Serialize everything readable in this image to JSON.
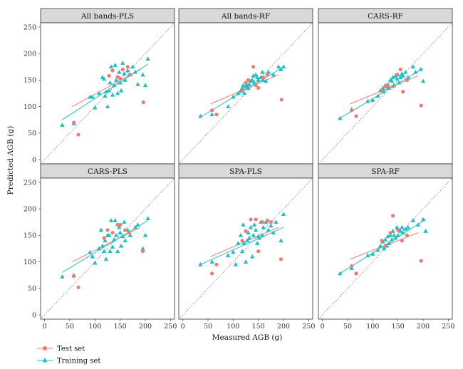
{
  "xlabel": "Measured AGB (g)",
  "ylabel": "Predicted AGB (g)",
  "axis_ticks": [
    "0",
    "50",
    "100",
    "150",
    "200",
    "250"
  ],
  "legend": {
    "test_label": "Test set",
    "train_label": "Training set"
  },
  "colors": {
    "test": "#f07a72",
    "train": "#1fbfc4",
    "strip_bg": "#d9d9d9",
    "panel_border": "#333333",
    "identity_line": "#666666"
  },
  "chart_data": [
    {
      "type": "scatter",
      "title": "All bands-PLS",
      "xlim": [
        -8,
        258
      ],
      "ylim": [
        -8,
        258
      ],
      "identity_line": true,
      "series": [
        {
          "name": "Test set",
          "x": [
            58,
            67,
            128,
            135,
            145,
            150,
            155,
            165,
            170,
            196
          ],
          "y": [
            70,
            47,
            158,
            168,
            156,
            153,
            170,
            175,
            160,
            108
          ],
          "fit": [
            [
              55,
              100
            ],
            [
              190,
              170
            ]
          ]
        },
        {
          "name": "Training set",
          "x": [
            35,
            58,
            90,
            95,
            100,
            108,
            115,
            118,
            120,
            122,
            125,
            128,
            130,
            132,
            135,
            138,
            140,
            142,
            145,
            148,
            150,
            152,
            155,
            158,
            160,
            165,
            168,
            175,
            180,
            185,
            195,
            200,
            205
          ],
          "y": [
            65,
            68,
            118,
            118,
            98,
            125,
            155,
            152,
            120,
            128,
            100,
            130,
            145,
            175,
            122,
            140,
            178,
            150,
            125,
            165,
            145,
            130,
            182,
            162,
            150,
            168,
            160,
            175,
            165,
            142,
            160,
            140,
            190
          ],
          "fit": [
            [
              35,
              75
            ],
            [
              205,
              180
            ]
          ]
        }
      ]
    },
    {
      "type": "scatter",
      "title": "All bands-RF",
      "xlim": [
        -8,
        258
      ],
      "ylim": [
        -8,
        258
      ],
      "identity_line": true,
      "series": [
        {
          "name": "Test set",
          "x": [
            58,
            67,
            118,
            125,
            130,
            140,
            145,
            150,
            160,
            168,
            196
          ],
          "y": [
            93,
            85,
            130,
            145,
            150,
            175,
            140,
            135,
            155,
            160,
            113
          ],
          "fit": [
            [
              55,
              105
            ],
            [
              190,
              160
            ]
          ]
        },
        {
          "name": "Training set",
          "x": [
            35,
            58,
            90,
            100,
            110,
            115,
            118,
            120,
            122,
            125,
            128,
            130,
            132,
            135,
            138,
            140,
            142,
            145,
            148,
            150,
            155,
            158,
            160,
            165,
            170,
            180,
            190,
            195,
            200
          ],
          "y": [
            82,
            85,
            100,
            118,
            125,
            130,
            135,
            140,
            125,
            138,
            140,
            135,
            142,
            148,
            150,
            158,
            145,
            160,
            155,
            150,
            155,
            165,
            150,
            148,
            165,
            160,
            175,
            170,
            175
          ],
          "fit": [
            [
              35,
              80
            ],
            [
              200,
              175
            ]
          ]
        }
      ]
    },
    {
      "type": "scatter",
      "title": "CARS-RF",
      "xlim": [
        -8,
        258
      ],
      "ylim": [
        -8,
        258
      ],
      "identity_line": true,
      "series": [
        {
          "name": "Test set",
          "x": [
            58,
            67,
            118,
            125,
            130,
            140,
            148,
            155,
            160,
            168,
            196
          ],
          "y": [
            93,
            82,
            130,
            138,
            140,
            138,
            160,
            170,
            128,
            150,
            102
          ],
          "fit": [
            [
              55,
              105
            ],
            [
              190,
              158
            ]
          ]
        },
        {
          "name": "Training set",
          "x": [
            35,
            58,
            90,
            100,
            110,
            115,
            120,
            122,
            125,
            128,
            130,
            132,
            135,
            138,
            140,
            142,
            145,
            148,
            150,
            152,
            155,
            158,
            160,
            165,
            170,
            180,
            185,
            195,
            200
          ],
          "y": [
            78,
            95,
            110,
            112,
            120,
            130,
            135,
            128,
            140,
            138,
            142,
            135,
            150,
            148,
            155,
            140,
            158,
            152,
            160,
            145,
            155,
            162,
            158,
            165,
            155,
            175,
            165,
            170,
            148
          ],
          "fit": [
            [
              35,
              78
            ],
            [
              200,
              172
            ]
          ]
        }
      ]
    },
    {
      "type": "scatter",
      "title": "CARS-PLS",
      "xlim": [
        -8,
        258
      ],
      "ylim": [
        -8,
        258
      ],
      "identity_line": true,
      "series": [
        {
          "name": "Test set",
          "x": [
            58,
            67,
            118,
            125,
            135,
            145,
            150,
            160,
            168,
            195
          ],
          "y": [
            73,
            52,
            145,
            160,
            155,
            170,
            170,
            160,
            155,
            120
          ],
          "fit": [
            [
              55,
              100
            ],
            [
              190,
              165
            ]
          ]
        },
        {
          "name": "Training set",
          "x": [
            35,
            58,
            90,
            95,
            100,
            108,
            112,
            115,
            118,
            120,
            122,
            125,
            128,
            130,
            132,
            135,
            138,
            140,
            142,
            145,
            148,
            150,
            152,
            155,
            158,
            160,
            165,
            170,
            180,
            185,
            195,
            200,
            205
          ],
          "y": [
            72,
            75,
            118,
            110,
            98,
            125,
            160,
            130,
            120,
            140,
            105,
            150,
            150,
            120,
            178,
            128,
            142,
            178,
            150,
            120,
            165,
            155,
            130,
            148,
            175,
            140,
            160,
            150,
            165,
            170,
            125,
            150,
            182
          ],
          "fit": [
            [
              35,
              80
            ],
            [
              205,
              178
            ]
          ]
        }
      ]
    },
    {
      "type": "scatter",
      "title": "SPA-PLS",
      "xlim": [
        -8,
        258
      ],
      "ylim": [
        -8,
        258
      ],
      "identity_line": true,
      "series": [
        {
          "name": "Test set",
          "x": [
            58,
            67,
            118,
            125,
            135,
            145,
            150,
            158,
            168,
            175,
            195
          ],
          "y": [
            78,
            95,
            140,
            158,
            180,
            180,
            120,
            175,
            178,
            175,
            105
          ],
          "fit": [
            [
              55,
              110
            ],
            [
              190,
              165
            ]
          ]
        },
        {
          "name": "Training set",
          "x": [
            35,
            58,
            90,
            100,
            105,
            110,
            115,
            118,
            120,
            122,
            125,
            128,
            130,
            132,
            135,
            138,
            140,
            142,
            145,
            148,
            150,
            152,
            155,
            158,
            160,
            165,
            170,
            175,
            180,
            185,
            195,
            200
          ],
          "y": [
            95,
            100,
            112,
            118,
            95,
            135,
            150,
            120,
            170,
            135,
            100,
            140,
            155,
            145,
            165,
            110,
            150,
            170,
            160,
            135,
            148,
            145,
            175,
            150,
            165,
            175,
            160,
            168,
            155,
            175,
            140,
            190
          ],
          "fit": [
            [
              35,
              95
            ],
            [
              200,
              165
            ]
          ]
        }
      ]
    },
    {
      "type": "scatter",
      "title": "SPA-RF",
      "xlim": [
        -8,
        258
      ],
      "ylim": [
        -8,
        258
      ],
      "identity_line": true,
      "series": [
        {
          "name": "Test set",
          "x": [
            58,
            67,
            118,
            125,
            135,
            140,
            150,
            158,
            168,
            196
          ],
          "y": [
            92,
            78,
            140,
            130,
            155,
            187,
            160,
            140,
            150,
            102
          ],
          "fit": [
            [
              55,
              105
            ],
            [
              190,
              155
            ]
          ]
        },
        {
          "name": "Training set",
          "x": [
            35,
            58,
            90,
            100,
            110,
            115,
            120,
            122,
            125,
            128,
            130,
            132,
            135,
            138,
            140,
            142,
            145,
            148,
            150,
            152,
            155,
            158,
            160,
            165,
            170,
            180,
            190,
            200,
            205
          ],
          "y": [
            78,
            88,
            112,
            115,
            122,
            130,
            138,
            125,
            142,
            130,
            148,
            135,
            150,
            142,
            158,
            150,
            145,
            165,
            150,
            160,
            158,
            165,
            155,
            162,
            165,
            178,
            170,
            180,
            158
          ],
          "fit": [
            [
              35,
              78
            ],
            [
              205,
              180
            ]
          ]
        }
      ]
    }
  ]
}
